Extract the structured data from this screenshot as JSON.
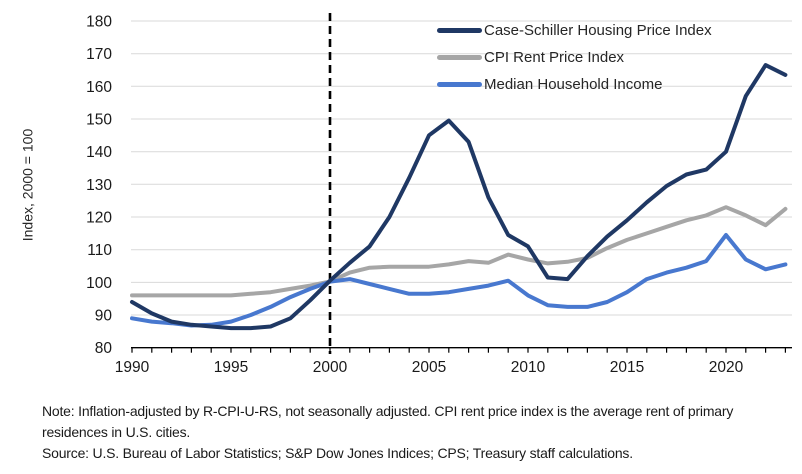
{
  "chart_data": {
    "type": "line",
    "title": "",
    "xlabel": "",
    "ylabel": "Index, 2000 = 100",
    "ylim": [
      80,
      180
    ],
    "xlim": [
      1990,
      2023
    ],
    "y_ticks": [
      80,
      90,
      100,
      110,
      120,
      130,
      140,
      150,
      160,
      170,
      180
    ],
    "x_ticks": [
      1990,
      1995,
      2000,
      2005,
      2010,
      2015,
      2020
    ],
    "grid": "horizontal",
    "gridline_color": "#d9d9d9",
    "axis_color": "#000000",
    "reference_line": {
      "x": 2000,
      "style": "dashed",
      "color": "#000000"
    },
    "legend_position": "top-right",
    "x": [
      1990,
      1991,
      1992,
      1993,
      1994,
      1995,
      1996,
      1997,
      1998,
      1999,
      2000,
      2001,
      2002,
      2003,
      2004,
      2005,
      2006,
      2007,
      2008,
      2009,
      2010,
      2011,
      2012,
      2013,
      2014,
      2015,
      2016,
      2017,
      2018,
      2019,
      2020,
      2021,
      2022,
      2023
    ],
    "series": [
      {
        "name": "Case-Schiller Housing Price Index",
        "color": "#1f3864",
        "values": [
          94,
          90.5,
          88,
          87,
          86.5,
          86,
          86,
          86.5,
          89,
          94.5,
          100.5,
          106,
          111,
          120,
          132,
          145,
          149.5,
          143,
          126,
          114.5,
          111,
          101.5,
          101,
          108,
          114,
          119,
          124.5,
          129.5,
          133,
          134.5,
          140,
          157,
          166.5,
          163.5
        ]
      },
      {
        "name": "CPI Rent Price Index",
        "color": "#a6a6a6",
        "values": [
          96,
          96,
          96,
          96,
          96,
          96,
          96.5,
          97,
          98,
          99,
          100.3,
          103,
          104.5,
          104.8,
          104.8,
          104.8,
          105.5,
          106.5,
          106,
          108.5,
          107,
          105.8,
          106.3,
          107.5,
          110.5,
          113,
          115,
          117,
          119,
          120.5,
          123,
          120.5,
          117.5,
          122.5
        ]
      },
      {
        "name": "Median Household Income",
        "color": "#4878cf",
        "values": [
          89,
          88,
          87.5,
          86.8,
          87,
          88,
          90,
          92.5,
          95.5,
          98,
          100.2,
          101,
          99.5,
          98,
          96.5,
          96.5,
          97,
          98,
          99,
          100.5,
          96,
          93,
          92.5,
          92.5,
          94,
          97,
          101,
          103,
          104.5,
          106.5,
          114.5,
          107,
          104,
          105.5
        ]
      }
    ]
  },
  "notes": {
    "note": "Note: Inflation-adjusted by R-CPI-U-RS, not seasonally adjusted. CPI rent price index is the average rent of primary residences in U.S. cities.",
    "source": "Source: U.S. Bureau of Labor Statistics; S&P Dow Jones Indices; CPS; Treasury staff calculations."
  }
}
